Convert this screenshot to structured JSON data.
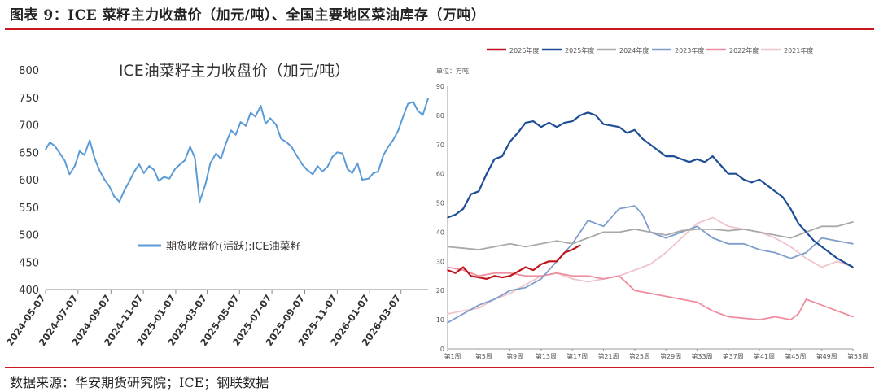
{
  "figure": {
    "title": "图表 9：ICE 菜籽主力收盘价（加元/吨）、全国主要地区菜油库存（万吨）",
    "source": "数据来源：华安期货研究院；ICE；钢联数据"
  },
  "chart_data": [
    {
      "type": "line",
      "title": "ICE油菜籽主力收盘价（加元/吨）",
      "ylim": [
        400,
        800
      ],
      "yticks": [
        "800",
        "750",
        "700",
        "650",
        "600",
        "550",
        "500",
        "450",
        "400"
      ],
      "xticks": [
        "2024-05-07",
        "2024-07-07",
        "2024-09-07",
        "2024-11-07",
        "2025-01-07",
        "2025-03-07",
        "2025-05-07",
        "2025-07-07",
        "2025-09-07",
        "2025-11-07",
        "2026-01-07",
        "2026-03-07"
      ],
      "grid": false,
      "legend_position": "bottom-inside",
      "colors": {
        "series": "#5b9bd5"
      },
      "series": [
        {
          "name": "期货收盘价(活跃):ICE油菜籽",
          "x": [
            "2024-05-07",
            "2024-05-15",
            "2024-05-24",
            "2024-06-03",
            "2024-06-12",
            "2024-06-21",
            "2024-07-01",
            "2024-07-10",
            "2024-07-19",
            "2024-07-29",
            "2024-08-07",
            "2024-08-16",
            "2024-08-26",
            "2024-09-04",
            "2024-09-13",
            "2024-09-23",
            "2024-10-02",
            "2024-10-11",
            "2024-10-21",
            "2024-10-30",
            "2024-11-08",
            "2024-11-18",
            "2024-11-27",
            "2024-12-06",
            "2024-12-16",
            "2024-12-26",
            "2025-01-06",
            "2025-01-15",
            "2025-01-24",
            "2025-02-03",
            "2025-02-12",
            "2025-02-21",
            "2025-03-04",
            "2025-03-13",
            "2025-03-24",
            "2025-04-02",
            "2025-04-11",
            "2025-04-21",
            "2025-04-30",
            "2025-05-09",
            "2025-05-19",
            "2025-05-28",
            "2025-06-06",
            "2025-06-16",
            "2025-06-25",
            "2025-07-04",
            "2025-07-15",
            "2025-07-24",
            "2025-08-04",
            "2025-08-13",
            "2025-08-22",
            "2025-09-02",
            "2025-09-11",
            "2025-09-22",
            "2025-10-01",
            "2025-10-10",
            "2025-10-20",
            "2025-10-29",
            "2025-11-07",
            "2025-11-17",
            "2025-11-26",
            "2025-12-05",
            "2025-12-15",
            "2025-12-24",
            "2026-01-05",
            "2026-01-14",
            "2026-01-23",
            "2026-02-02",
            "2026-02-11",
            "2026-02-20",
            "2026-03-02",
            "2026-03-11",
            "2026-03-20",
            "2026-03-30",
            "2026-04-08",
            "2026-04-17",
            "2026-04-27"
          ],
          "values": [
            655,
            668,
            662,
            648,
            635,
            610,
            625,
            652,
            645,
            672,
            640,
            618,
            600,
            588,
            570,
            560,
            580,
            596,
            615,
            628,
            612,
            625,
            618,
            598,
            605,
            602,
            620,
            628,
            635,
            660,
            640,
            560,
            592,
            630,
            648,
            638,
            665,
            690,
            682,
            705,
            698,
            722,
            715,
            735,
            702,
            712,
            700,
            675,
            668,
            660,
            645,
            628,
            618,
            610,
            625,
            615,
            624,
            642,
            650,
            648,
            620,
            612,
            630,
            600,
            602,
            612,
            615,
            645,
            660,
            672,
            690,
            715,
            738,
            742,
            725,
            718,
            748
          ]
        }
      ]
    },
    {
      "type": "line",
      "title": "",
      "ylabel": "单位：万吨",
      "ylim": [
        0,
        90
      ],
      "yticks": [
        "90",
        "80",
        "70",
        "60",
        "50",
        "40",
        "30",
        "20",
        "10",
        "0"
      ],
      "xticks": [
        "第1周",
        "第5周",
        "第9周",
        "第13周",
        "第17周",
        "第21周",
        "第25周",
        "第29周",
        "第33周",
        "第37周",
        "第41周",
        "第45周",
        "第49周",
        "第53周"
      ],
      "grid": false,
      "legend_position": "top",
      "colors": {
        "2026年度": "#c0141c",
        "2025年度": "#1f4e96",
        "2024年度": "#a9a9a9",
        "2023年度": "#7f9dcb",
        "2022年度": "#ee8e9e",
        "2021年度": "#f0c4ca"
      },
      "series": [
        {
          "name": "2026年度",
          "x": [
            1,
            2,
            3,
            4,
            5,
            6,
            7,
            8,
            9,
            10,
            11,
            12,
            13,
            14,
            15,
            16,
            17,
            18
          ],
          "values": [
            27,
            26,
            28,
            25,
            24.5,
            24,
            25,
            24.5,
            25,
            26.5,
            28,
            27,
            29,
            30,
            30,
            33,
            34,
            35.5
          ]
        },
        {
          "name": "2025年度",
          "x": [
            1,
            2,
            3,
            4,
            5,
            6,
            7,
            8,
            9,
            10,
            11,
            12,
            13,
            14,
            15,
            16,
            17,
            18,
            19,
            20,
            21,
            22,
            23,
            24,
            25,
            26,
            27,
            28,
            29,
            30,
            31,
            32,
            33,
            34,
            35,
            36,
            37,
            38,
            39,
            40,
            41,
            42,
            43,
            44,
            45,
            46,
            47,
            48,
            49,
            50,
            51,
            52,
            53
          ],
          "values": [
            45,
            46,
            48,
            53,
            54,
            60,
            65,
            66,
            71,
            74,
            77.5,
            78,
            76,
            77.5,
            76,
            77.5,
            78,
            80,
            81,
            80,
            77,
            76.5,
            76,
            74,
            75,
            72,
            70,
            68,
            66,
            66,
            65,
            64,
            65,
            64,
            66,
            63,
            60,
            60,
            58,
            57,
            58,
            56,
            54,
            52,
            48,
            43,
            40,
            37,
            35,
            33,
            31,
            29.5,
            28
          ]
        },
        {
          "name": "2024年度",
          "x": [
            1,
            3,
            5,
            7,
            9,
            11,
            13,
            15,
            17,
            19,
            21,
            23,
            25,
            27,
            29,
            31,
            33,
            35,
            37,
            39,
            41,
            43,
            45,
            47,
            49,
            51,
            53
          ],
          "values": [
            35,
            34.5,
            34,
            35,
            36,
            35,
            36,
            37,
            36,
            38,
            40,
            40,
            41,
            40,
            39,
            40.5,
            41,
            41,
            40.5,
            41,
            40,
            39,
            38,
            40,
            42,
            42,
            43.5
          ]
        },
        {
          "name": "2023年度",
          "x": [
            1,
            3,
            5,
            7,
            9,
            11,
            13,
            15,
            17,
            19,
            20,
            21,
            23,
            25,
            26,
            27,
            29,
            31,
            33,
            35,
            37,
            39,
            41,
            43,
            45,
            47,
            49,
            51,
            53
          ],
          "values": [
            9,
            12,
            15,
            17,
            20,
            21,
            24,
            30,
            36,
            44,
            43,
            42,
            48,
            49,
            46,
            40,
            38,
            40,
            42,
            38,
            36,
            36,
            34,
            33,
            31,
            33,
            38,
            37,
            36
          ]
        },
        {
          "name": "2022年度",
          "x": [
            1,
            3,
            5,
            7,
            9,
            11,
            13,
            15,
            17,
            19,
            21,
            23,
            25,
            27,
            29,
            31,
            33,
            35,
            37,
            39,
            41,
            43,
            45,
            46,
            47,
            49,
            51,
            53
          ],
          "values": [
            28,
            27,
            25,
            26,
            26,
            25,
            25,
            26,
            25,
            25,
            24,
            25,
            20,
            19,
            18,
            17,
            16,
            13,
            11,
            10.5,
            10,
            11,
            10,
            12,
            17,
            15,
            13,
            11
          ]
        },
        {
          "name": "2021年度",
          "x": [
            1,
            3,
            5,
            7,
            9,
            11,
            13,
            15,
            17,
            19,
            21,
            23,
            25,
            27,
            29,
            31,
            33,
            35,
            37,
            39,
            41,
            43,
            45,
            47,
            49,
            51,
            53
          ],
          "values": [
            12,
            13,
            14,
            17,
            19,
            22,
            25,
            26,
            24,
            23,
            24,
            25,
            27,
            29,
            33,
            38,
            43,
            45,
            42,
            41,
            40,
            38,
            35,
            31,
            28,
            30,
            28
          ]
        }
      ]
    }
  ]
}
